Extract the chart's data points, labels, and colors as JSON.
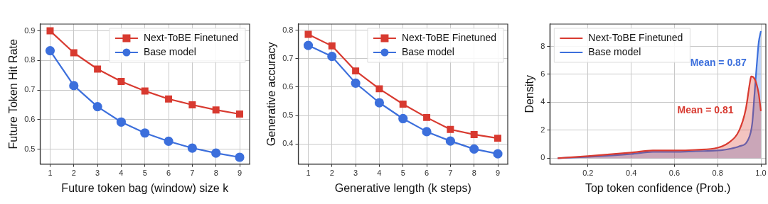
{
  "chart_data": [
    {
      "type": "line",
      "xlabel": "Future token bag (window) size k",
      "ylabel": "Future Token Hit Rate",
      "x": [
        1,
        2,
        3,
        4,
        5,
        6,
        7,
        8,
        9
      ],
      "xlim": [
        0.58,
        9.42
      ],
      "xticks": [
        1,
        2,
        3,
        4,
        5,
        6,
        7,
        8,
        9
      ],
      "ylim": [
        0.45,
        0.923
      ],
      "yticks": [
        0.5,
        0.6,
        0.7,
        0.8,
        0.9
      ],
      "grid": true,
      "legend": "top right",
      "series": [
        {
          "name": "Next-ToBE Finetuned",
          "color": "#d83a30",
          "marker": "square",
          "values": [
            0.9,
            0.826,
            0.771,
            0.729,
            0.697,
            0.67,
            0.65,
            0.633,
            0.619
          ]
        },
        {
          "name": "Base model",
          "color": "#3c6fdc",
          "marker": "circle",
          "values": [
            0.833,
            0.715,
            0.644,
            0.592,
            0.555,
            0.527,
            0.504,
            0.487,
            0.473
          ]
        }
      ]
    },
    {
      "type": "line",
      "xlabel": "Generative length (k steps)",
      "ylabel": "Generative accuracy",
      "x": [
        1,
        2,
        3,
        4,
        5,
        6,
        7,
        8,
        9
      ],
      "xlim": [
        0.58,
        9.42
      ],
      "xticks": [
        1,
        2,
        3,
        4,
        5,
        6,
        7,
        8,
        9
      ],
      "ylim": [
        0.329,
        0.822
      ],
      "yticks": [
        0.4,
        0.5,
        0.6,
        0.7,
        0.8
      ],
      "grid": true,
      "legend": "top right",
      "series": [
        {
          "name": "Next-ToBE Finetuned",
          "color": "#d83a30",
          "marker": "square",
          "values": [
            0.786,
            0.745,
            0.657,
            0.594,
            0.54,
            0.493,
            0.451,
            0.433,
            0.42
          ]
        },
        {
          "name": "Base model",
          "color": "#3c6fdc",
          "marker": "circle",
          "values": [
            0.747,
            0.708,
            0.614,
            0.545,
            0.489,
            0.443,
            0.41,
            0.382,
            0.365
          ]
        }
      ]
    },
    {
      "type": "area",
      "xlabel": "Top token confidence (Prob.)",
      "ylabel": "Density",
      "xlim": [
        0.024,
        1.023
      ],
      "xticks": [
        0.2,
        0.4,
        0.6,
        {
          "value": 0.8,
          "label": "0.8"
        },
        {
          "value": 1,
          "label": "1.0"
        }
      ],
      "ylim": [
        -0.42,
        9.6
      ],
      "yticks": [
        0,
        2,
        4,
        6,
        8
      ],
      "grid": true,
      "legend": "top left",
      "marker": "none",
      "annotations": [
        "Mean = 0.81",
        "Mean = 0.87"
      ],
      "series": [
        {
          "name": "Next-ToBE Finetuned",
          "color": "#d83a30",
          "x": [
            0.06,
            0.2,
            0.4,
            0.5,
            0.6,
            0.7,
            0.8,
            0.85,
            0.9,
            0.93,
            0.95,
            0.955,
            0.97,
            0.98,
            0.99,
            1.0
          ],
          "values": [
            0,
            0.15,
            0.4,
            0.55,
            0.55,
            0.6,
            0.75,
            1.1,
            2.0,
            3.5,
            5.5,
            5.85,
            5.7,
            5.3,
            4.6,
            3.37
          ]
        },
        {
          "name": "Base model",
          "color": "#3c6fdc",
          "x": [
            0.06,
            0.2,
            0.4,
            0.5,
            0.6,
            0.7,
            0.8,
            0.85,
            0.9,
            0.94,
            0.96,
            0.97,
            0.98,
            0.99,
            1.0
          ],
          "values": [
            0,
            0.1,
            0.3,
            0.45,
            0.45,
            0.5,
            0.55,
            0.65,
            0.85,
            1.3,
            2.5,
            4.5,
            6.5,
            8.3,
            9.1
          ]
        }
      ]
    }
  ]
}
